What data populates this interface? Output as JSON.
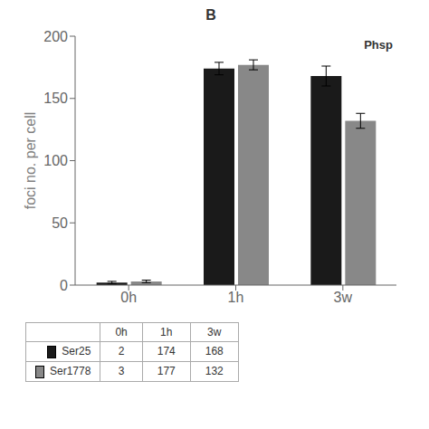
{
  "chart_data": {
    "type": "bar",
    "title": "B",
    "annotations": [
      "Phsp"
    ],
    "categories": [
      "0h",
      "1h",
      "3w"
    ],
    "series": [
      {
        "name": "Ser25",
        "color": "#1a1a1a",
        "values": [
          2,
          174,
          168
        ],
        "errors": [
          1,
          5,
          8
        ]
      },
      {
        "name": "Ser1778",
        "color": "#888888",
        "values": [
          3,
          177,
          132
        ],
        "errors": [
          1,
          4,
          6
        ]
      }
    ],
    "ylabel": "foci no. per cell",
    "ylim": [
      0,
      200
    ],
    "yticks": [
      0,
      50,
      100,
      150,
      200
    ],
    "grid": false
  }
}
